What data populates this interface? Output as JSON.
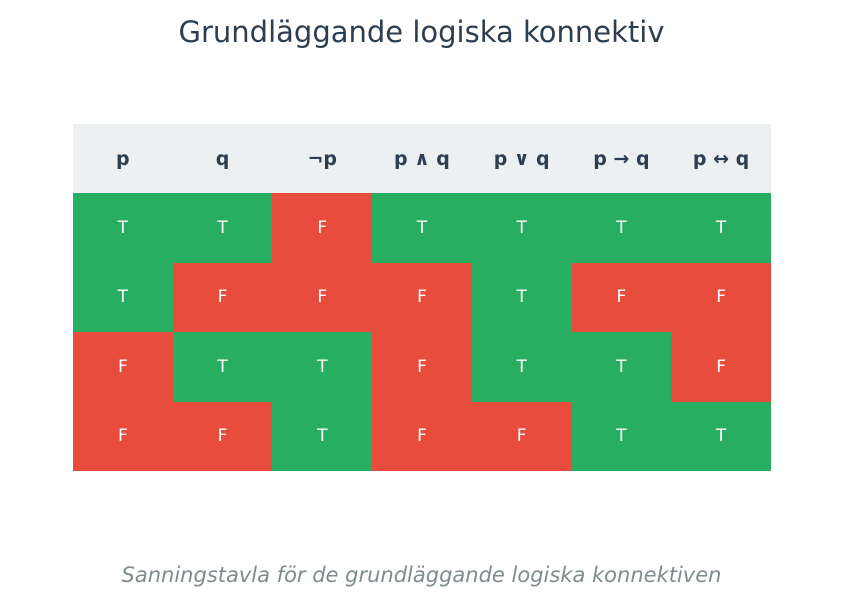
{
  "title": "Grundläggande logiska konnektiv",
  "caption": "Sanningstavla för de grundläggande logiska konnektiven",
  "colors": {
    "true": "#27ae60",
    "false": "#e74c3c",
    "header_bg": "#ecf0f1",
    "header_text": "#2c3e50",
    "title": "#2c3e50",
    "caption": "#7f8c8d"
  },
  "chart_data": {
    "type": "table",
    "title": "Grundläggande logiska konnektiv",
    "subtitle": "Sanningstavla för de grundläggande logiska konnektiven",
    "columns": [
      "p",
      "q",
      "¬p",
      "p ∧ q",
      "p ∨ q",
      "p → q",
      "p ↔ q"
    ],
    "rows": [
      [
        "T",
        "T",
        "F",
        "T",
        "T",
        "T",
        "T"
      ],
      [
        "T",
        "F",
        "F",
        "F",
        "T",
        "F",
        "F"
      ],
      [
        "F",
        "T",
        "T",
        "F",
        "T",
        "T",
        "F"
      ],
      [
        "F",
        "F",
        "T",
        "F",
        "F",
        "T",
        "T"
      ]
    ]
  }
}
